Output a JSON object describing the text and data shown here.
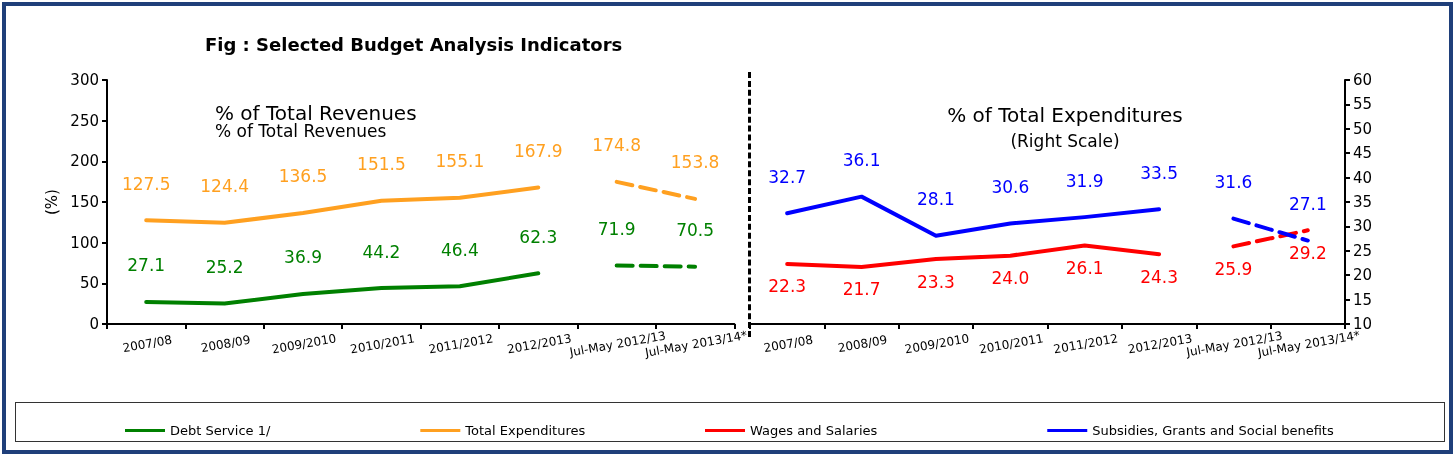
{
  "chart_data": [
    {
      "type": "line",
      "title": "Fig : Selected Budget Analysis Indicators",
      "ylabel": "(%)",
      "annotations": [
        "% of Total Revenues",
        "% of Total Revenues"
      ],
      "categories": [
        "2007/08",
        "2008/09",
        "2009/2010",
        "2010/2011",
        "2011/2012",
        "2012/2013",
        "Jul-May 2012/13",
        "Jul-May 2013/14*"
      ],
      "series": [
        {
          "name": "Debt Service 1/",
          "color": "#008000",
          "line_style": "solid",
          "values": [
            27.1,
            25.2,
            36.9,
            44.2,
            46.4,
            62.3,
            null,
            null
          ],
          "value_labels": [
            "27.1",
            "25.2",
            "36.9",
            "44.2",
            "46.4",
            "62.3",
            null,
            null
          ]
        },
        {
          "color": "#008000",
          "line_style": "dashed",
          "values": [
            null,
            null,
            null,
            null,
            null,
            null,
            71.9,
            70.5
          ],
          "value_labels": [
            null,
            null,
            null,
            null,
            null,
            null,
            "71.9",
            "70.5"
          ]
        },
        {
          "name": "Total Expenditures",
          "color": "#ffa020",
          "line_style": "solid",
          "values": [
            127.5,
            124.4,
            136.5,
            151.5,
            155.1,
            167.9,
            null,
            null
          ],
          "value_labels": [
            "127.5",
            "124.4",
            "136.5",
            "151.5",
            "155.1",
            "167.9",
            null,
            null
          ]
        },
        {
          "color": "#ffa020",
          "line_style": "dashed",
          "values": [
            null,
            null,
            null,
            null,
            null,
            null,
            174.8,
            153.8
          ],
          "value_labels": [
            null,
            null,
            null,
            null,
            null,
            null,
            "174.8",
            "153.8"
          ]
        }
      ],
      "ylim": [
        0,
        300
      ],
      "yticks": [
        0,
        50,
        100,
        150,
        200,
        250,
        300
      ],
      "grid": false,
      "legend": "bottom",
      "marker": "none"
    },
    {
      "type": "line",
      "title": "% of Total Expenditures",
      "subtitle": "(Right Scale)",
      "categories": [
        "2007/08",
        "2008/09",
        "2009/2010",
        "2010/2011",
        "2011/2012",
        "2012/2013",
        "Jul-May 2012/13",
        "Jul-May 2013/14*"
      ],
      "series": [
        {
          "name": "Wages and Salaries",
          "color": "#ff0000",
          "axis": "y2",
          "line_style": "solid",
          "values": [
            22.3,
            21.7,
            23.3,
            24.0,
            26.1,
            24.3,
            null,
            null
          ],
          "value_labels": [
            "22.3",
            "21.7",
            "23.3",
            "24.0",
            "26.1",
            "24.3",
            null,
            null
          ]
        },
        {
          "color": "#ff0000",
          "axis": "y2",
          "line_style": "dashed",
          "values": [
            null,
            null,
            null,
            null,
            null,
            null,
            25.9,
            29.2
          ],
          "value_labels": [
            null,
            null,
            null,
            null,
            null,
            null,
            "25.9",
            "29.2"
          ]
        },
        {
          "name": "Subsidies, Grants and Social benefits",
          "color": "#0000ff",
          "axis": "y2",
          "line_style": "solid",
          "values": [
            32.7,
            36.1,
            28.1,
            30.6,
            31.9,
            33.5,
            null,
            null
          ],
          "value_labels": [
            "32.7",
            "36.1",
            "28.1",
            "30.6",
            "31.9",
            "33.5",
            null,
            null
          ]
        },
        {
          "color": "#0000ff",
          "axis": "y2",
          "line_style": "dashed",
          "values": [
            null,
            null,
            null,
            null,
            null,
            null,
            31.6,
            27.1
          ],
          "value_labels": [
            null,
            null,
            null,
            null,
            null,
            null,
            "31.6",
            "27.1"
          ]
        }
      ],
      "y2lim": [
        10,
        60
      ],
      "y2ticks": [
        10,
        15,
        20,
        25,
        30,
        35,
        40,
        45,
        50,
        55,
        60
      ],
      "grid": false,
      "legend": "bottom",
      "marker": "none"
    }
  ]
}
